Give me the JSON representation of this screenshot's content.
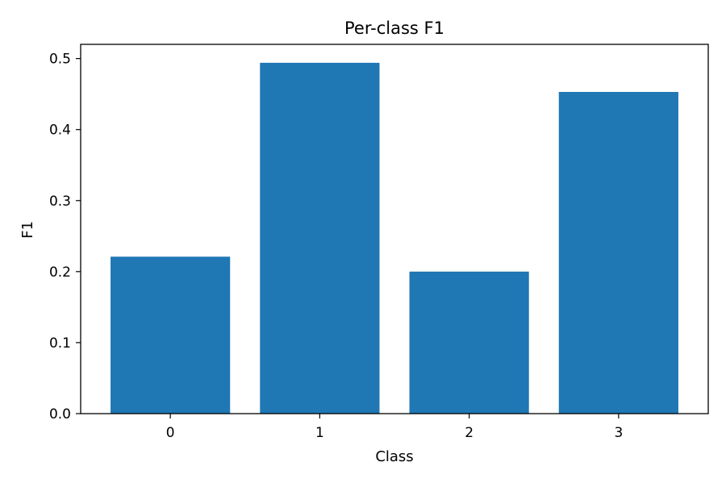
{
  "chart_data": {
    "type": "bar",
    "title": "Per-class F1",
    "xlabel": "Class",
    "ylabel": "F1",
    "categories": [
      "0",
      "1",
      "2",
      "3"
    ],
    "values": [
      0.221,
      0.494,
      0.2,
      0.453
    ],
    "ylim": [
      0,
      0.52
    ],
    "yticks": [
      0.0,
      0.1,
      0.2,
      0.3,
      0.4,
      0.5
    ],
    "ytick_labels": [
      "0.0",
      "0.1",
      "0.2",
      "0.3",
      "0.4",
      "0.5"
    ],
    "bar_color": "#1f77b4",
    "grid": false,
    "legend": "none"
  }
}
